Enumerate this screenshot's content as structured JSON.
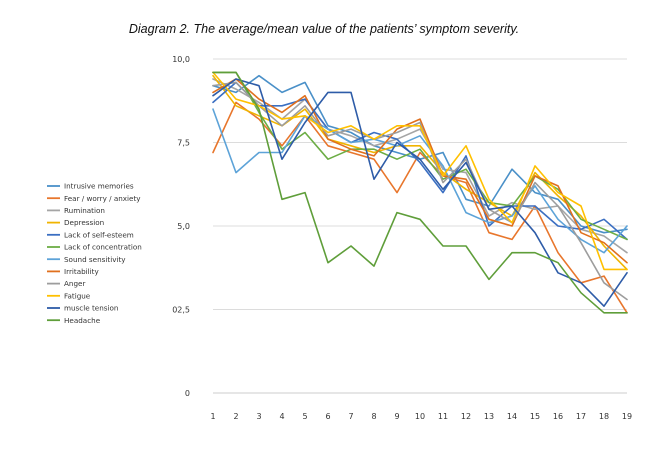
{
  "chart_data": {
    "type": "line",
    "title": "Diagram 2. The average/mean value of the patients’ symptom severity.",
    "xlabel": "",
    "ylabel": "",
    "x": [
      1,
      2,
      3,
      4,
      5,
      6,
      7,
      8,
      9,
      10,
      11,
      12,
      13,
      14,
      15,
      16,
      17,
      18,
      19
    ],
    "ylim": [
      0,
      10
    ],
    "y_ticks": [
      {
        "value": 0,
        "label": "0"
      },
      {
        "value": 2.5,
        "label": "02,5"
      },
      {
        "value": 5,
        "label": "5,0"
      },
      {
        "value": 7.5,
        "label": "7,5"
      },
      {
        "value": 10,
        "label": "10,0"
      }
    ],
    "grid": true,
    "legend_position": "left",
    "series": [
      {
        "name": "Intrusive memories",
        "color": "#4a90c8",
        "values": [
          9.2,
          9.0,
          9.5,
          9.0,
          9.3,
          8.0,
          7.8,
          7.4,
          7.2,
          7.0,
          7.2,
          5.8,
          5.6,
          6.7,
          6.0,
          5.8,
          5.0,
          4.8,
          4.9
        ]
      },
      {
        "name": "Fear / worry / anxiety",
        "color": "#e8762c",
        "values": [
          7.2,
          8.7,
          8.2,
          7.4,
          8.3,
          7.4,
          7.2,
          7.0,
          6.0,
          7.2,
          6.5,
          6.3,
          4.8,
          4.6,
          5.6,
          4.2,
          3.3,
          3.5,
          2.4
        ]
      },
      {
        "name": "Rumination",
        "color": "#a5a5a5",
        "values": [
          9.4,
          9.1,
          8.7,
          8.2,
          8.8,
          7.9,
          7.7,
          7.4,
          7.6,
          7.9,
          6.7,
          6.6,
          5.3,
          5.7,
          5.5,
          5.6,
          4.9,
          4.7,
          4.2
        ]
      },
      {
        "name": "Depression",
        "color": "#f0b400",
        "values": [
          9.5,
          8.6,
          8.3,
          8.0,
          8.5,
          7.6,
          7.4,
          7.2,
          7.4,
          7.4,
          6.6,
          6.1,
          5.7,
          5.3,
          6.6,
          5.9,
          5.3,
          4.4,
          3.7
        ]
      },
      {
        "name": "Lack of self-esteem",
        "color": "#3b6fc2",
        "values": [
          8.7,
          9.3,
          8.6,
          8.6,
          8.8,
          7.9,
          7.5,
          7.8,
          7.6,
          6.9,
          6.0,
          7.1,
          5.0,
          5.6,
          5.6,
          5.0,
          4.9,
          5.2,
          4.6
        ]
      },
      {
        "name": "Lack of concentration",
        "color": "#6cad45",
        "values": [
          9.6,
          9.6,
          8.4,
          7.3,
          7.8,
          7.0,
          7.3,
          7.3,
          7.0,
          7.3,
          6.4,
          6.7,
          5.7,
          5.6,
          6.5,
          6.1,
          5.2,
          4.9,
          4.6
        ]
      },
      {
        "name": "Sound sensitivity",
        "color": "#5da3d8",
        "values": [
          8.5,
          6.6,
          7.2,
          7.2,
          8.3,
          7.9,
          7.5,
          7.6,
          7.4,
          7.7,
          6.8,
          5.4,
          5.1,
          5.3,
          6.2,
          5.2,
          4.6,
          4.2,
          5.0
        ]
      },
      {
        "name": "Irritability",
        "color": "#e0701e",
        "values": [
          9.0,
          9.4,
          8.8,
          8.4,
          8.9,
          7.6,
          7.3,
          7.1,
          7.9,
          8.2,
          6.5,
          6.4,
          5.2,
          5.0,
          6.5,
          6.2,
          4.8,
          4.5,
          3.9
        ]
      },
      {
        "name": "Anger",
        "color": "#9d9d9d",
        "values": [
          9.2,
          9.3,
          8.6,
          8.0,
          8.6,
          7.7,
          7.9,
          7.6,
          7.8,
          8.1,
          6.3,
          7.0,
          5.5,
          5.1,
          6.3,
          5.6,
          4.5,
          3.3,
          2.8
        ]
      },
      {
        "name": "Fatigue",
        "color": "#ffc000",
        "values": [
          9.6,
          8.8,
          8.6,
          8.2,
          8.3,
          7.8,
          8.0,
          7.6,
          8.0,
          8.0,
          6.5,
          7.4,
          5.8,
          5.1,
          6.8,
          6.0,
          5.6,
          3.7,
          3.7
        ]
      },
      {
        "name": "muscle tension",
        "color": "#2e5ca8",
        "values": [
          8.9,
          9.4,
          9.2,
          7.0,
          8.1,
          9.0,
          9.0,
          6.4,
          7.5,
          7.0,
          6.1,
          6.9,
          5.5,
          5.6,
          4.8,
          3.6,
          3.3,
          2.6,
          3.6
        ]
      },
      {
        "name": "Headache",
        "color": "#5f9e3a",
        "values": [
          9.6,
          9.6,
          8.5,
          5.8,
          6.0,
          3.9,
          4.4,
          3.8,
          5.4,
          5.2,
          4.4,
          4.4,
          3.4,
          4.2,
          4.2,
          3.9,
          3.0,
          2.4,
          2.4
        ]
      }
    ]
  }
}
